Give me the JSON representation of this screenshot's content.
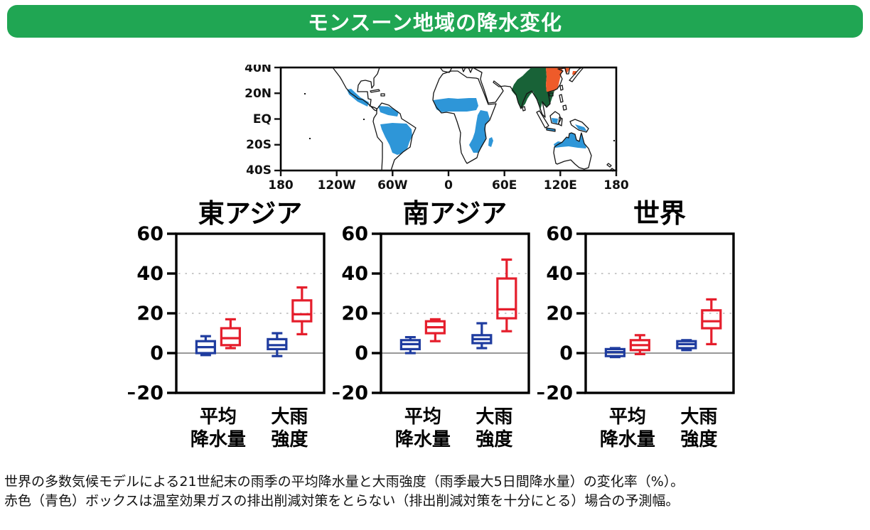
{
  "header": {
    "title": "モンスーン地域の降水変化"
  },
  "colors": {
    "header_green": "#20a653",
    "blue": "#1f3c9f",
    "red": "#e51e2c",
    "map_monsoon_blue": "#2e96d8",
    "map_south_asia_green": "#186237",
    "map_east_asia_orange": "#ee5b2a"
  },
  "map": {
    "ylabels": [
      "40N",
      "20N",
      "EQ",
      "20S",
      "40S"
    ],
    "xlabels": [
      "180",
      "120W",
      "60W",
      "0",
      "60E",
      "120E",
      "180"
    ]
  },
  "chart_data": [
    {
      "type": "box",
      "title": "東アジア",
      "ylim": [
        -20,
        60
      ],
      "yticks": [
        60,
        40,
        20,
        0,
        -20
      ],
      "gridlines": [
        40,
        20
      ],
      "zero_line": 0,
      "ylabel": "変化率（%）",
      "categories": [
        "平均降水量",
        "大雨強度"
      ],
      "groups": [
        {
          "label_lines": [
            "平均",
            "降水量"
          ],
          "boxes": [
            {
              "color": "blue",
              "low": -1,
              "q1": 0,
              "median": 3,
              "q3": 6,
              "high": 8.5
            },
            {
              "color": "red",
              "low": 2.5,
              "q1": 4,
              "median": 7.5,
              "q3": 12.5,
              "high": 17
            }
          ]
        },
        {
          "label_lines": [
            "大雨",
            "強度"
          ],
          "boxes": [
            {
              "color": "blue",
              "low": -1.5,
              "q1": 2,
              "median": 4,
              "q3": 7,
              "high": 10
            },
            {
              "color": "red",
              "low": 9.5,
              "q1": 16,
              "median": 19.5,
              "q3": 26.5,
              "high": 33
            }
          ]
        }
      ]
    },
    {
      "type": "box",
      "title": "南アジア",
      "ylim": [
        -20,
        60
      ],
      "yticks": [
        60,
        40,
        20,
        0,
        -20
      ],
      "gridlines": [
        40,
        20
      ],
      "zero_line": 0,
      "ylabel": "変化率（%）",
      "categories": [
        "平均降水量",
        "大雨強度"
      ],
      "groups": [
        {
          "label_lines": [
            "平均",
            "降水量"
          ],
          "boxes": [
            {
              "color": "blue",
              "low": 0,
              "q1": 2,
              "median": 4.5,
              "q3": 6.5,
              "high": 8
            },
            {
              "color": "red",
              "low": 6,
              "q1": 10,
              "median": 13,
              "q3": 16,
              "high": 17
            }
          ]
        },
        {
          "label_lines": [
            "大雨",
            "強度"
          ],
          "boxes": [
            {
              "color": "blue",
              "low": 2.5,
              "q1": 5,
              "median": 7,
              "q3": 9,
              "high": 15
            },
            {
              "color": "red",
              "low": 11,
              "q1": 17.5,
              "median": 22,
              "q3": 37.5,
              "high": 47
            }
          ]
        }
      ]
    },
    {
      "type": "box",
      "title": "世界",
      "ylim": [
        -20,
        60
      ],
      "yticks": [
        60,
        40,
        20,
        0,
        -20
      ],
      "gridlines": [
        40,
        20
      ],
      "zero_line": 0,
      "ylabel": "変化率（%）",
      "categories": [
        "平均降水量",
        "大雨強度"
      ],
      "groups": [
        {
          "label_lines": [
            "平均",
            "降水量"
          ],
          "boxes": [
            {
              "color": "blue",
              "low": -2,
              "q1": -1.5,
              "median": 0.5,
              "q3": 2,
              "high": 2.5
            },
            {
              "color": "red",
              "low": -0.5,
              "q1": 1.5,
              "median": 4,
              "q3": 6.5,
              "high": 9
            }
          ]
        },
        {
          "label_lines": [
            "大雨",
            "強度"
          ],
          "boxes": [
            {
              "color": "blue",
              "low": 1.5,
              "q1": 2.5,
              "median": 4.5,
              "q3": 6,
              "high": 6.5
            },
            {
              "color": "red",
              "low": 4.5,
              "q1": 12.5,
              "median": 16,
              "q3": 21.5,
              "high": 27
            }
          ]
        }
      ]
    }
  ],
  "caption": {
    "line1": "世界の多数気候モデルによる21世紀末の雨季の平均降水量と大雨強度（雨季最大5日間降水量）の変化率（%）。",
    "line2": "赤色（青色）ボックスは温室効果ガスの排出削減対策をとらない（排出削減対策を十分にとる）場合の予測幅。"
  }
}
